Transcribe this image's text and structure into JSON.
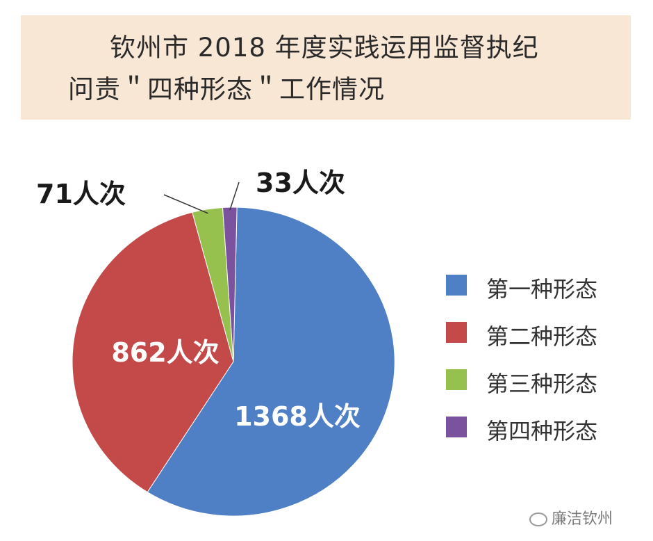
{
  "title": {
    "line1": "钦州市 2018 年度实践运用监督执纪",
    "line2": "问责＂四种形态＂工作情况"
  },
  "chart_data": {
    "type": "pie",
    "title": "钦州市 2018 年度实践运用监督执纪问责＂四种形态＂工作情况",
    "slices": [
      {
        "label": "第一种形态",
        "value": 1368,
        "data_label": "1368人次",
        "color": "#4f7fc4"
      },
      {
        "label": "第二种形态",
        "value": 862,
        "data_label": "862人次",
        "color": "#c44a4a"
      },
      {
        "label": "第三种形态",
        "value": 71,
        "data_label": "71人次",
        "color": "#97c14e"
      },
      {
        "label": "第四种形态",
        "value": 33,
        "data_label": "33人次",
        "color": "#7a529e"
      }
    ],
    "legend_position": "right"
  },
  "watermark": "廉洁钦州"
}
